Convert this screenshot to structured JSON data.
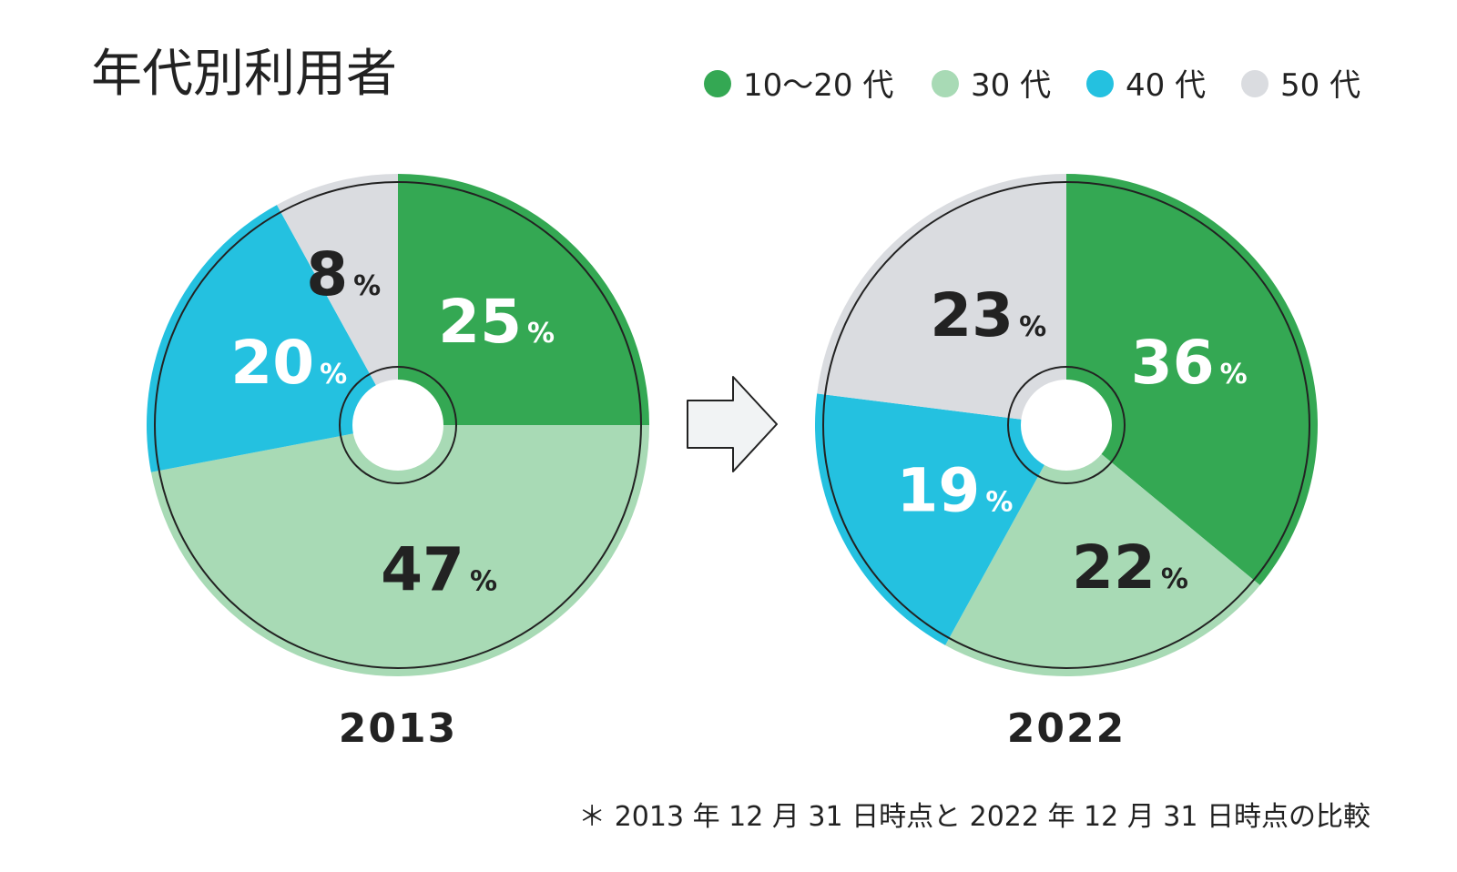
{
  "title": "年代別利用者",
  "footnote": "＊ 2013 年 12 月 31 日時点と 2022 年 12 月 31 日時点の比較",
  "percent_sign": "%",
  "legend": [
    {
      "label": "10〜20 代",
      "color": "#34A853"
    },
    {
      "label": "30 代",
      "color": "#A8DAB5"
    },
    {
      "label": "40 代",
      "color": "#24C1E0"
    },
    {
      "label": "50 代",
      "color": "#DADCE0"
    }
  ],
  "chart_data": [
    {
      "type": "pie",
      "title": "2013",
      "categories": [
        "10〜20 代",
        "30 代",
        "40 代",
        "50 代"
      ],
      "values": [
        25,
        47,
        20,
        8
      ],
      "labels": [
        "25",
        "47",
        "20",
        "8"
      ],
      "label_colors": [
        "#ffffff",
        "#222222",
        "#ffffff",
        "#222222"
      ]
    },
    {
      "type": "pie",
      "title": "2022",
      "categories": [
        "10〜20 代",
        "30 代",
        "40 代",
        "50 代"
      ],
      "values": [
        36,
        22,
        19,
        23
      ],
      "labels": [
        "36",
        "22",
        "19",
        "23"
      ],
      "label_colors": [
        "#ffffff",
        "#222222",
        "#ffffff",
        "#222222"
      ]
    }
  ]
}
